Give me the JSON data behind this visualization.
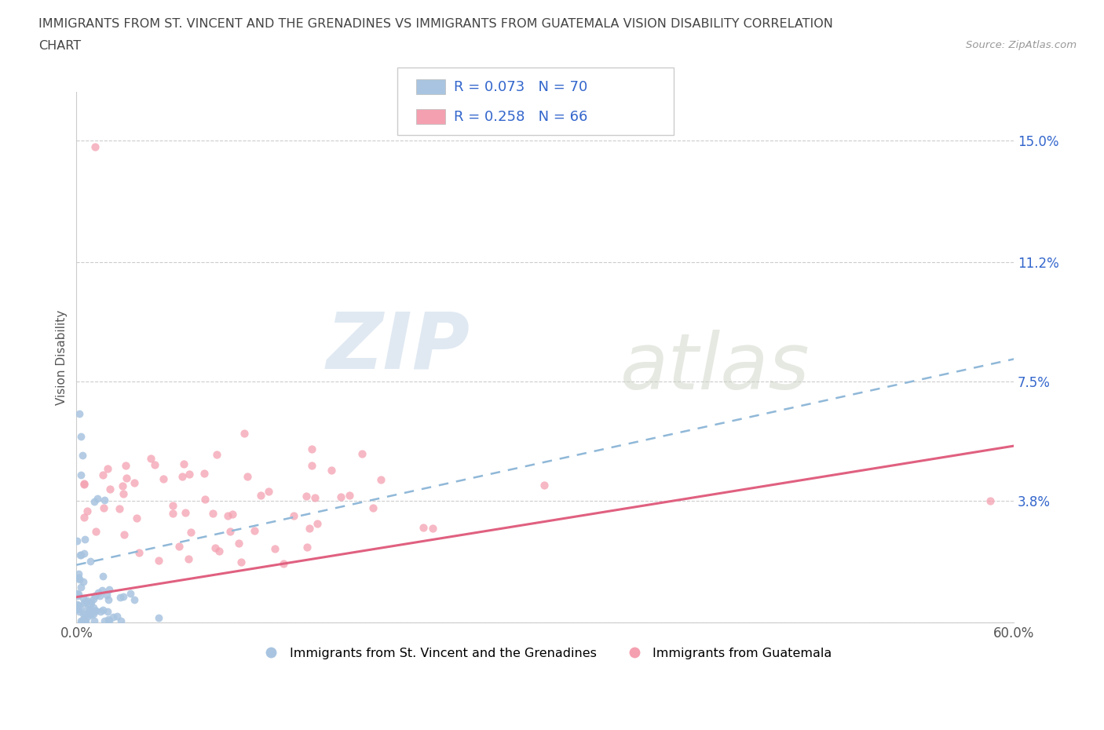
{
  "title_line1": "IMMIGRANTS FROM ST. VINCENT AND THE GRENADINES VS IMMIGRANTS FROM GUATEMALA VISION DISABILITY CORRELATION",
  "title_line2": "CHART",
  "source": "Source: ZipAtlas.com",
  "ylabel": "Vision Disability",
  "xmin": 0.0,
  "xmax": 0.6,
  "ymin": 0.0,
  "ymax": 0.165,
  "yticks": [
    0.0,
    0.038,
    0.075,
    0.112,
    0.15
  ],
  "ytick_labels": [
    "",
    "3.8%",
    "7.5%",
    "11.2%",
    "15.0%"
  ],
  "R_blue": 0.073,
  "N_blue": 70,
  "R_pink": 0.258,
  "N_pink": 66,
  "color_blue": "#a8c4e0",
  "color_pink": "#f4a0b0",
  "legend_label_blue": "Immigrants from St. Vincent and the Grenadines",
  "legend_label_pink": "Immigrants from Guatemala",
  "watermark_zip": "ZIP",
  "watermark_atlas": "atlas",
  "blue_trend_start": 0.018,
  "blue_trend_end": 0.082,
  "pink_trend_start": 0.008,
  "pink_trend_end": 0.055
}
